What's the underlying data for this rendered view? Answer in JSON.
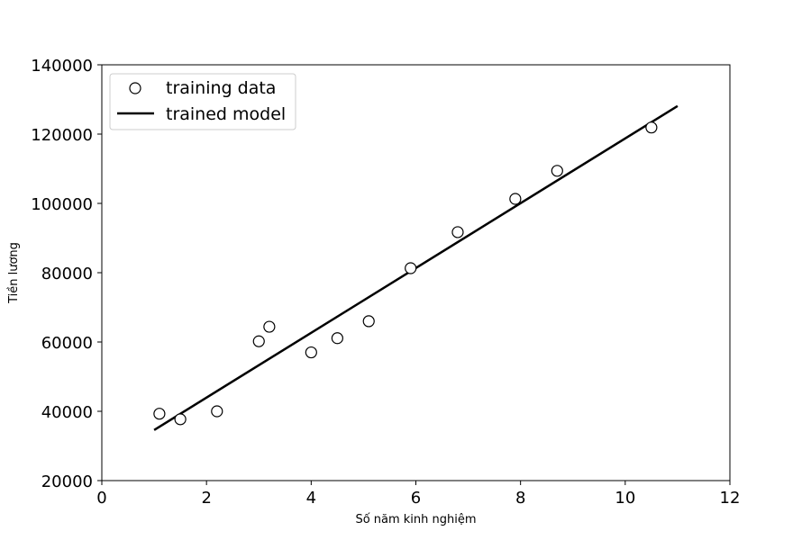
{
  "chart_data": {
    "type": "scatter",
    "title": "",
    "xlabel": "Số năm kinh nghiệm",
    "ylabel": "Tiền lương",
    "xlim": [
      0,
      12
    ],
    "ylim": [
      20000,
      140000
    ],
    "x_ticks": [
      0,
      2,
      4,
      6,
      8,
      10,
      12
    ],
    "y_ticks": [
      20000,
      40000,
      60000,
      80000,
      100000,
      120000,
      140000
    ],
    "x_tick_labels": [
      "0",
      "2",
      "4",
      "6",
      "8",
      "10",
      "12"
    ],
    "y_tick_labels": [
      "20000",
      "40000",
      "60000",
      "80000",
      "100000",
      "120000",
      "140000"
    ],
    "grid": false,
    "legend_position": "top-left",
    "series": [
      {
        "name": "training data",
        "kind": "scatter",
        "marker": "open-circle",
        "color": "#000000",
        "points": [
          [
            1.1,
            39300
          ],
          [
            1.5,
            37700
          ],
          [
            2.2,
            40000
          ],
          [
            3.0,
            60200
          ],
          [
            3.2,
            64400
          ],
          [
            4.0,
            57000
          ],
          [
            4.5,
            61100
          ],
          [
            5.1,
            66000
          ],
          [
            5.9,
            81300
          ],
          [
            6.8,
            91700
          ],
          [
            7.9,
            101300
          ],
          [
            8.7,
            109400
          ],
          [
            10.5,
            121900
          ]
        ]
      },
      {
        "name": "trained model",
        "kind": "line",
        "color": "#000000",
        "points": [
          [
            1.0,
            34600
          ],
          [
            11.0,
            128100
          ]
        ]
      }
    ]
  }
}
